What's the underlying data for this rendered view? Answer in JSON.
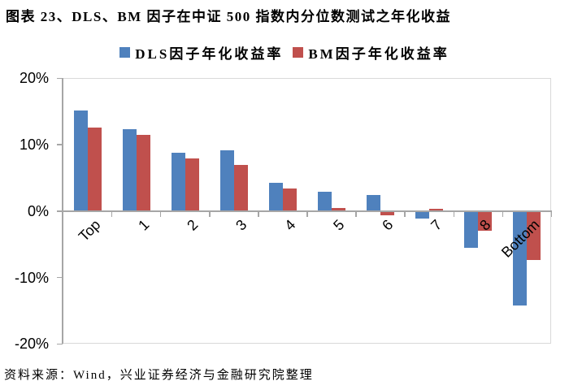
{
  "title": "图表 23、DLS、BM 因子在中证 500 指数内分位数测试之年化收益",
  "source": "资料来源：Wind，兴业证券经济与金融研究院整理",
  "colors": {
    "dls_blue": "#4F81BD",
    "bm_red": "#C0504D",
    "axis_line": "#A6A6A6",
    "plot_border": "#D9D9D9",
    "text": "#000000"
  },
  "chart_data": {
    "type": "bar",
    "title": "",
    "xlabel": "",
    "ylabel": "",
    "categories": [
      "Top",
      "1",
      "2",
      "3",
      "4",
      "5",
      "6",
      "7",
      "8",
      "Bottom"
    ],
    "series": [
      {
        "key": "dls",
        "name": "DLS因子年化收益率",
        "color": "#4F81BD",
        "values": [
          15.1,
          12.3,
          8.8,
          9.1,
          4.2,
          2.9,
          2.4,
          -1.1,
          -5.5,
          -14.2
        ]
      },
      {
        "key": "bm",
        "name": "BM因子年化收益率",
        "color": "#C0504D",
        "values": [
          12.6,
          11.5,
          7.9,
          6.9,
          3.4,
          0.5,
          -0.6,
          0.3,
          -2.9,
          -7.3
        ]
      }
    ],
    "ylim": [
      -20,
      20
    ],
    "yticks": [
      {
        "value": 20,
        "label": "20%"
      },
      {
        "value": 10,
        "label": "10%"
      },
      {
        "value": 0,
        "label": "0%"
      },
      {
        "value": -10,
        "label": "-10%"
      },
      {
        "value": -20,
        "label": "-20%"
      }
    ],
    "grid": false,
    "legend_position": "top",
    "category_label_rotation_deg": -45
  }
}
